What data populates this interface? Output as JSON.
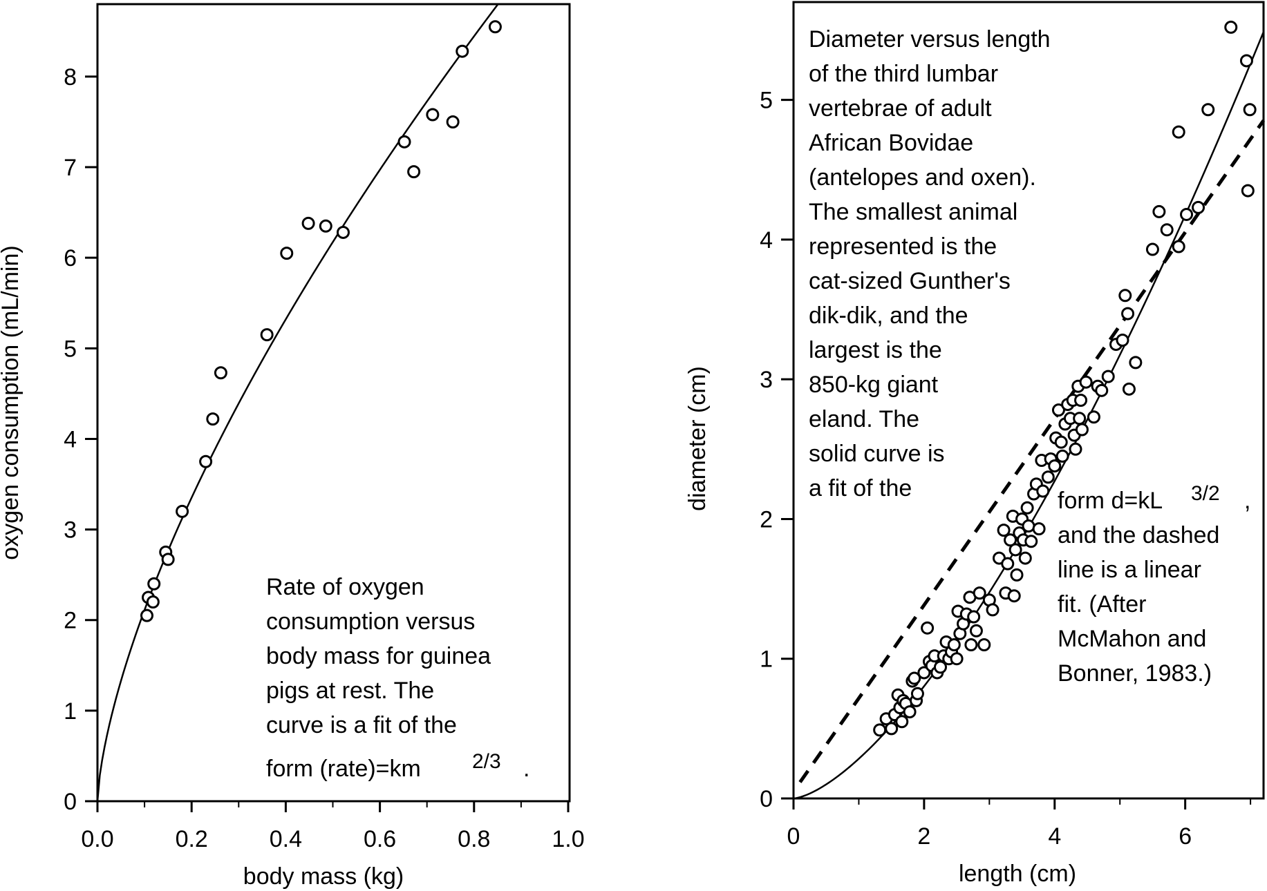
{
  "chart_data": [
    {
      "type": "scatter",
      "xlabel": "body mass (kg)",
      "ylabel": "oxygen consumption (mL/min)",
      "xlim": [
        0.0,
        1.0
      ],
      "ylim": [
        0,
        8.8
      ],
      "x_ticks": [
        "0.0",
        "0.2",
        "0.4",
        "0.6",
        "0.8",
        "1.0"
      ],
      "y_ticks": [
        "0",
        "1",
        "2",
        "3",
        "4",
        "5",
        "6",
        "7",
        "8"
      ],
      "grid": false,
      "points": [
        {
          "x": 0.105,
          "y": 2.05
        },
        {
          "x": 0.108,
          "y": 2.25
        },
        {
          "x": 0.118,
          "y": 2.2
        },
        {
          "x": 0.12,
          "y": 2.4
        },
        {
          "x": 0.145,
          "y": 2.75
        },
        {
          "x": 0.15,
          "y": 2.67
        },
        {
          "x": 0.18,
          "y": 3.2
        },
        {
          "x": 0.23,
          "y": 3.75
        },
        {
          "x": 0.245,
          "y": 4.22
        },
        {
          "x": 0.262,
          "y": 4.73
        },
        {
          "x": 0.36,
          "y": 5.15
        },
        {
          "x": 0.402,
          "y": 6.05
        },
        {
          "x": 0.448,
          "y": 6.38
        },
        {
          "x": 0.485,
          "y": 6.35
        },
        {
          "x": 0.522,
          "y": 6.28
        },
        {
          "x": 0.652,
          "y": 7.28
        },
        {
          "x": 0.672,
          "y": 6.95
        },
        {
          "x": 0.712,
          "y": 7.58
        },
        {
          "x": 0.755,
          "y": 7.5
        },
        {
          "x": 0.775,
          "y": 8.28
        },
        {
          "x": 0.845,
          "y": 8.55
        }
      ],
      "fit_curve": {
        "style": "solid",
        "form": "power",
        "k": 9.8,
        "exponent": 0.6667
      },
      "caption": {
        "lines": [
          "Rate of oxygen",
          "consumption versus",
          "body mass for guinea",
          "pigs at rest. The",
          "curve is a fit of the",
          "form (rate)=km"
        ],
        "superscript": "2/3",
        "trail": "."
      }
    },
    {
      "type": "scatter",
      "xlabel": "length (cm)",
      "ylabel": "diameter (cm)",
      "xlim": [
        0,
        7.2
      ],
      "ylim": [
        0,
        5.7
      ],
      "x_ticks": [
        "0",
        "2",
        "4",
        "6"
      ],
      "y_ticks": [
        "0",
        "1",
        "2",
        "3",
        "4",
        "5"
      ],
      "grid": false,
      "points": [
        {
          "x": 1.32,
          "y": 0.49
        },
        {
          "x": 1.42,
          "y": 0.57
        },
        {
          "x": 1.5,
          "y": 0.5
        },
        {
          "x": 1.55,
          "y": 0.6
        },
        {
          "x": 1.6,
          "y": 0.74
        },
        {
          "x": 1.63,
          "y": 0.65
        },
        {
          "x": 1.66,
          "y": 0.55
        },
        {
          "x": 1.68,
          "y": 0.7
        },
        {
          "x": 1.72,
          "y": 0.68
        },
        {
          "x": 1.78,
          "y": 0.62
        },
        {
          "x": 1.82,
          "y": 0.84
        },
        {
          "x": 1.85,
          "y": 0.86
        },
        {
          "x": 1.88,
          "y": 0.7
        },
        {
          "x": 1.9,
          "y": 0.75
        },
        {
          "x": 2.0,
          "y": 0.9
        },
        {
          "x": 2.05,
          "y": 1.22
        },
        {
          "x": 2.08,
          "y": 0.98
        },
        {
          "x": 2.12,
          "y": 0.95
        },
        {
          "x": 2.16,
          "y": 1.02
        },
        {
          "x": 2.2,
          "y": 0.9
        },
        {
          "x": 2.25,
          "y": 0.94
        },
        {
          "x": 2.3,
          "y": 1.02
        },
        {
          "x": 2.34,
          "y": 1.12
        },
        {
          "x": 2.38,
          "y": 1.0
        },
        {
          "x": 2.42,
          "y": 1.05
        },
        {
          "x": 2.46,
          "y": 1.1
        },
        {
          "x": 2.5,
          "y": 1.0
        },
        {
          "x": 2.52,
          "y": 1.34
        },
        {
          "x": 2.55,
          "y": 1.18
        },
        {
          "x": 2.6,
          "y": 1.25
        },
        {
          "x": 2.65,
          "y": 1.32
        },
        {
          "x": 2.7,
          "y": 1.44
        },
        {
          "x": 2.72,
          "y": 1.1
        },
        {
          "x": 2.76,
          "y": 1.3
        },
        {
          "x": 2.8,
          "y": 1.2
        },
        {
          "x": 2.85,
          "y": 1.47
        },
        {
          "x": 2.92,
          "y": 1.1
        },
        {
          "x": 3.0,
          "y": 1.42
        },
        {
          "x": 3.05,
          "y": 1.35
        },
        {
          "x": 3.15,
          "y": 1.72
        },
        {
          "x": 3.22,
          "y": 1.92
        },
        {
          "x": 3.25,
          "y": 1.47
        },
        {
          "x": 3.28,
          "y": 1.68
        },
        {
          "x": 3.32,
          "y": 1.85
        },
        {
          "x": 3.36,
          "y": 2.02
        },
        {
          "x": 3.38,
          "y": 1.45
        },
        {
          "x": 3.4,
          "y": 1.78
        },
        {
          "x": 3.42,
          "y": 1.6
        },
        {
          "x": 3.46,
          "y": 1.9
        },
        {
          "x": 3.5,
          "y": 2.0
        },
        {
          "x": 3.52,
          "y": 1.85
        },
        {
          "x": 3.55,
          "y": 1.72
        },
        {
          "x": 3.58,
          "y": 2.08
        },
        {
          "x": 3.6,
          "y": 1.95
        },
        {
          "x": 3.64,
          "y": 1.84
        },
        {
          "x": 3.68,
          "y": 2.18
        },
        {
          "x": 3.72,
          "y": 2.25
        },
        {
          "x": 3.76,
          "y": 1.93
        },
        {
          "x": 3.8,
          "y": 2.42
        },
        {
          "x": 3.82,
          "y": 2.2
        },
        {
          "x": 3.9,
          "y": 2.3
        },
        {
          "x": 3.94,
          "y": 2.43
        },
        {
          "x": 4.0,
          "y": 2.38
        },
        {
          "x": 4.02,
          "y": 2.58
        },
        {
          "x": 4.06,
          "y": 2.78
        },
        {
          "x": 4.1,
          "y": 2.55
        },
        {
          "x": 4.12,
          "y": 2.45
        },
        {
          "x": 4.16,
          "y": 2.68
        },
        {
          "x": 4.2,
          "y": 2.82
        },
        {
          "x": 4.24,
          "y": 2.72
        },
        {
          "x": 4.28,
          "y": 2.85
        },
        {
          "x": 4.3,
          "y": 2.6
        },
        {
          "x": 4.32,
          "y": 2.5
        },
        {
          "x": 4.36,
          "y": 2.95
        },
        {
          "x": 4.38,
          "y": 2.72
        },
        {
          "x": 4.4,
          "y": 2.85
        },
        {
          "x": 4.42,
          "y": 2.64
        },
        {
          "x": 4.48,
          "y": 2.98
        },
        {
          "x": 4.6,
          "y": 2.73
        },
        {
          "x": 4.66,
          "y": 2.95
        },
        {
          "x": 4.72,
          "y": 2.92
        },
        {
          "x": 4.82,
          "y": 3.02
        },
        {
          "x": 4.94,
          "y": 3.25
        },
        {
          "x": 5.04,
          "y": 3.28
        },
        {
          "x": 5.08,
          "y": 3.6
        },
        {
          "x": 5.12,
          "y": 3.47
        },
        {
          "x": 5.14,
          "y": 2.93
        },
        {
          "x": 5.24,
          "y": 3.12
        },
        {
          "x": 5.5,
          "y": 3.93
        },
        {
          "x": 5.6,
          "y": 4.2
        },
        {
          "x": 5.72,
          "y": 4.07
        },
        {
          "x": 5.9,
          "y": 4.77
        },
        {
          "x": 5.9,
          "y": 3.95
        },
        {
          "x": 6.02,
          "y": 4.18
        },
        {
          "x": 6.2,
          "y": 4.23
        },
        {
          "x": 6.35,
          "y": 4.93
        },
        {
          "x": 6.7,
          "y": 5.52
        },
        {
          "x": 6.94,
          "y": 5.28
        },
        {
          "x": 6.96,
          "y": 4.35
        },
        {
          "x": 6.99,
          "y": 4.93
        }
      ],
      "fit_curve": {
        "style": "solid",
        "form": "power",
        "k": 0.284,
        "exponent": 1.5
      },
      "fit_line": {
        "style": "dashed",
        "form": "linear",
        "slope": 0.667,
        "intercept": 0.05
      },
      "caption": {
        "upper_lines": [
          "Diameter versus length",
          "of the third lumbar",
          "vertebrae of adult",
          "African Bovidae",
          "(antelopes and oxen).",
          "The smallest animal",
          "represented is the",
          "cat-sized Gunther's",
          "dik-dik, and the",
          "largest is the",
          "850-kg giant",
          "eland. The",
          "solid curve is",
          "a fit of the"
        ],
        "form_line": "form d=kL",
        "superscript": "3/2",
        "comma": ",",
        "lower_lines": [
          "and the dashed",
          "line is a linear",
          "fit. (After",
          "McMahon and",
          "Bonner, 1983.)"
        ]
      }
    }
  ]
}
